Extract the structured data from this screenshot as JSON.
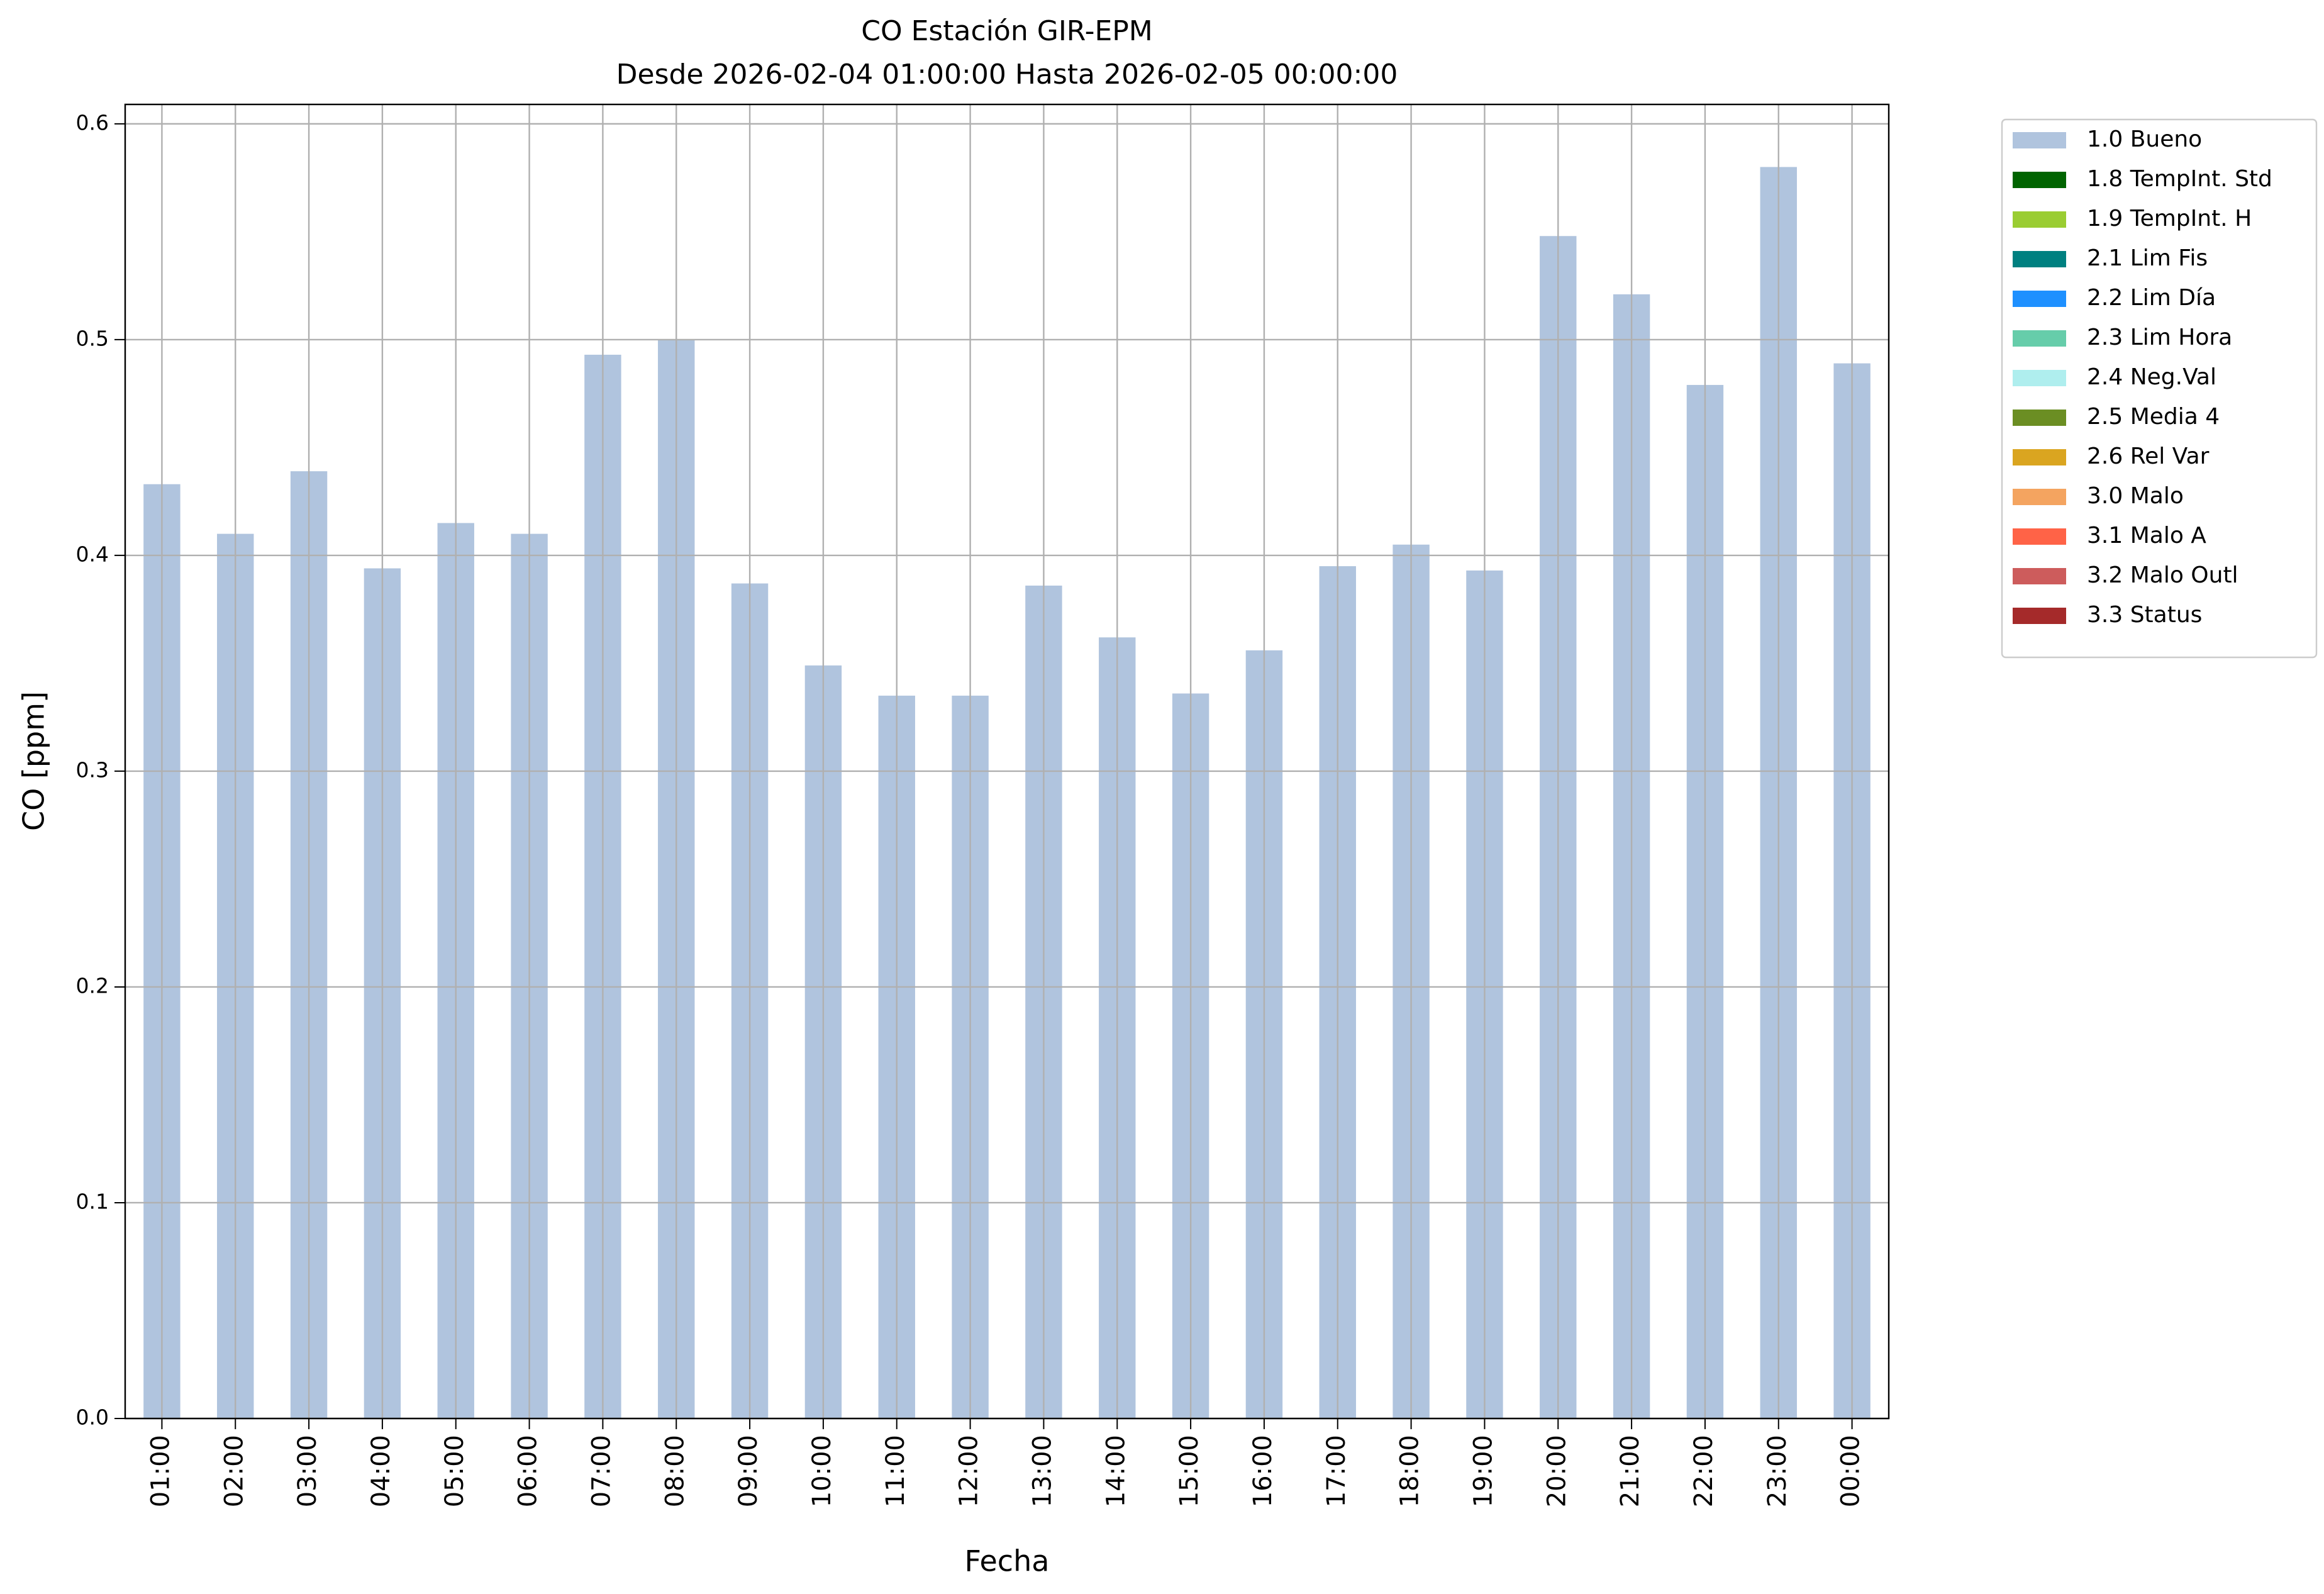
{
  "chart_data": {
    "type": "bar",
    "title": "CO Estación GIR-EPM",
    "subtitle": "Desde 2026-02-04 01:00:00 Hasta 2026-02-05 00:00:00",
    "x_label": "Fecha",
    "y_label": "CO [ppm]",
    "categories": [
      "01:00",
      "02:00",
      "03:00",
      "04:00",
      "05:00",
      "06:00",
      "07:00",
      "08:00",
      "09:00",
      "10:00",
      "11:00",
      "12:00",
      "13:00",
      "14:00",
      "15:00",
      "16:00",
      "17:00",
      "18:00",
      "19:00",
      "20:00",
      "21:00",
      "22:00",
      "23:00",
      "00:00"
    ],
    "series": [
      {
        "name": "1.0 Bueno",
        "color": "#b0c4de",
        "values": [
          0.433,
          0.41,
          0.439,
          0.394,
          0.415,
          0.41,
          0.493,
          0.5,
          0.387,
          0.349,
          0.335,
          0.335,
          0.386,
          0.362,
          0.336,
          0.356,
          0.395,
          0.405,
          0.393,
          0.548,
          0.521,
          0.479,
          0.58,
          0.489
        ]
      },
      {
        "name": "1.8 TempInt. Std",
        "color": "#006400",
        "values": [
          null,
          null,
          null,
          null,
          null,
          null,
          null,
          null,
          null,
          null,
          null,
          null,
          null,
          null,
          null,
          null,
          null,
          null,
          null,
          null,
          null,
          null,
          null,
          null
        ]
      },
      {
        "name": "1.9 TempInt. H",
        "color": "#9acd32",
        "values": [
          null,
          null,
          null,
          null,
          null,
          null,
          null,
          null,
          null,
          null,
          null,
          null,
          null,
          null,
          null,
          null,
          null,
          null,
          null,
          null,
          null,
          null,
          null,
          null
        ]
      },
      {
        "name": "2.1 Lim Fis",
        "color": "#008080",
        "values": [
          null,
          null,
          null,
          null,
          null,
          null,
          null,
          null,
          null,
          null,
          null,
          null,
          null,
          null,
          null,
          null,
          null,
          null,
          null,
          null,
          null,
          null,
          null,
          null
        ]
      },
      {
        "name": "2.2 Lim Día",
        "color": "#1e90ff",
        "values": [
          null,
          null,
          null,
          null,
          null,
          null,
          null,
          null,
          null,
          null,
          null,
          null,
          null,
          null,
          null,
          null,
          null,
          null,
          null,
          null,
          null,
          null,
          null,
          null
        ]
      },
      {
        "name": "2.3 Lim Hora",
        "color": "#66cdaa",
        "values": [
          null,
          null,
          null,
          null,
          null,
          null,
          null,
          null,
          null,
          null,
          null,
          null,
          null,
          null,
          null,
          null,
          null,
          null,
          null,
          null,
          null,
          null,
          null,
          null
        ]
      },
      {
        "name": "2.4 Neg.Val",
        "color": "#afeeee",
        "values": [
          null,
          null,
          null,
          null,
          null,
          null,
          null,
          null,
          null,
          null,
          null,
          null,
          null,
          null,
          null,
          null,
          null,
          null,
          null,
          null,
          null,
          null,
          null,
          null
        ]
      },
      {
        "name": "2.5 Media 4",
        "color": "#6b8e23",
        "values": [
          null,
          null,
          null,
          null,
          null,
          null,
          null,
          null,
          null,
          null,
          null,
          null,
          null,
          null,
          null,
          null,
          null,
          null,
          null,
          null,
          null,
          null,
          null,
          null
        ]
      },
      {
        "name": "2.6 Rel Var",
        "color": "#daa520",
        "values": [
          null,
          null,
          null,
          null,
          null,
          null,
          null,
          null,
          null,
          null,
          null,
          null,
          null,
          null,
          null,
          null,
          null,
          null,
          null,
          null,
          null,
          null,
          null,
          null
        ]
      },
      {
        "name": "3.0 Malo",
        "color": "#f4a460",
        "values": [
          null,
          null,
          null,
          null,
          null,
          null,
          null,
          null,
          null,
          null,
          null,
          null,
          null,
          null,
          null,
          null,
          null,
          null,
          null,
          null,
          null,
          null,
          null,
          null
        ]
      },
      {
        "name": "3.1 Malo A",
        "color": "#ff6347",
        "values": [
          null,
          null,
          null,
          null,
          null,
          null,
          null,
          null,
          null,
          null,
          null,
          null,
          null,
          null,
          null,
          null,
          null,
          null,
          null,
          null,
          null,
          null,
          null,
          null
        ]
      },
      {
        "name": "3.2 Malo Outl",
        "color": "#cd5c5c",
        "values": [
          null,
          null,
          null,
          null,
          null,
          null,
          null,
          null,
          null,
          null,
          null,
          null,
          null,
          null,
          null,
          null,
          null,
          null,
          null,
          null,
          null,
          null,
          null,
          null
        ]
      },
      {
        "name": "3.3 Status",
        "color": "#a52a2a",
        "values": [
          null,
          null,
          null,
          null,
          null,
          null,
          null,
          null,
          null,
          null,
          null,
          null,
          null,
          null,
          null,
          null,
          null,
          null,
          null,
          null,
          null,
          null,
          null,
          null
        ]
      }
    ],
    "stacked": true,
    "ylim": [
      0,
      0.609
    ],
    "yticks": [
      {
        "value": 0,
        "label": "0.0"
      },
      0.1,
      0.2,
      0.3,
      0.4,
      0.5,
      0.6
    ],
    "grid": true,
    "legend": "outside-upper-right"
  }
}
